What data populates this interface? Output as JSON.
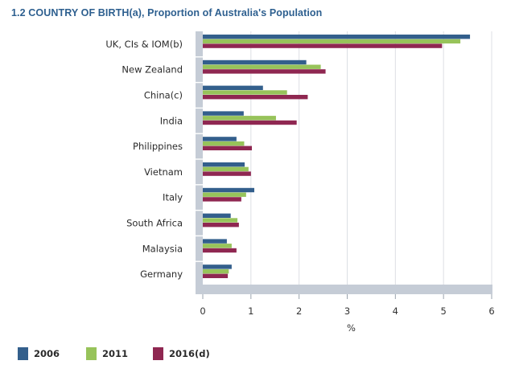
{
  "chart_data": {
    "type": "bar",
    "orientation": "horizontal",
    "title": "1.2 COUNTRY OF BIRTH(a), Proportion of Australia's Population",
    "xlabel": "%",
    "ylabel": "",
    "xlim": [
      0,
      6
    ],
    "xticks": [
      0,
      1,
      2,
      3,
      4,
      5,
      6
    ],
    "categories": [
      "UK, CIs & IOM(b)",
      "New Zealand",
      "China(c)",
      "India",
      "Philippines",
      "Vietnam",
      "Italy",
      "South Africa",
      "Malaysia",
      "Germany"
    ],
    "series": [
      {
        "name": "2006",
        "color": "#335f8c",
        "values": [
          5.55,
          2.15,
          1.25,
          0.85,
          0.7,
          0.87,
          1.07,
          0.58,
          0.5,
          0.6
        ]
      },
      {
        "name": "2011",
        "color": "#97c35a",
        "values": [
          5.35,
          2.45,
          1.75,
          1.52,
          0.86,
          0.95,
          0.9,
          0.72,
          0.6,
          0.54
        ]
      },
      {
        "name": "2016(d)",
        "color": "#8f2751",
        "values": [
          4.97,
          2.55,
          2.18,
          1.95,
          1.02,
          1.0,
          0.8,
          0.75,
          0.7,
          0.52
        ]
      }
    ],
    "grid": true,
    "legend_position": "bottom-left"
  }
}
